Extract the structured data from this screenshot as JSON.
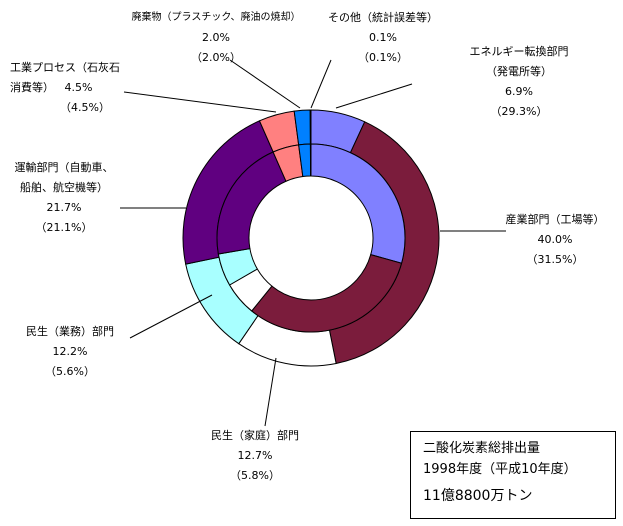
{
  "chart_data": {
    "type": "pie",
    "categories": [
      "エネルギー転換部門（発電所等）",
      "産業部門（工場等）",
      "民生（家庭）部門",
      "民生（業務）部門",
      "運輸部門（自動車、船舶、航空機等）",
      "工業プロセス（石灰石消費等）",
      "廃棄物（プラスチック、廃油の焼却）",
      "その他（統計誤差等）"
    ],
    "series": [
      {
        "ring": "outer",
        "values": [
          6.9,
          40.0,
          12.7,
          12.2,
          21.7,
          4.5,
          2.0,
          0.1
        ]
      },
      {
        "ring": "inner",
        "values": [
          29.3,
          31.5,
          5.8,
          5.6,
          21.1,
          4.5,
          2.0,
          0.1
        ]
      }
    ],
    "colors": [
      "#8080ff",
      "#7b1c3c",
      "#ffffff",
      "#a8ffff",
      "#600080",
      "#ff8080",
      "#0080ff",
      "#c0c0ff"
    ],
    "unit": "%"
  },
  "labels": {
    "energy": {
      "l1": "エネルギー転換部門",
      "l2": "（発電所等）",
      "outer": "6.9%",
      "inner": "（29.3%）"
    },
    "industry": {
      "l1": "産業部門（工場等）",
      "outer": "40.0%",
      "inner": "（31.5%）"
    },
    "household": {
      "l1": "民生（家庭）部門",
      "outer": "12.7%",
      "inner": "（5.8%）"
    },
    "business": {
      "l1": "民生（業務）部門",
      "outer": "12.2%",
      "inner": "（5.6%）"
    },
    "transport": {
      "l1": "運輸部門（自動車、",
      "l2": "船舶、航空機等）",
      "outer": "21.7%",
      "inner": "（21.1%）"
    },
    "process": {
      "l1": "工業プロセス（石灰石",
      "l2": "消費等）",
      "outer": "4.5%",
      "inner": "（4.5%）"
    },
    "waste": {
      "l1": "廃棄物（プラスチック、廃油の焼却）",
      "outer": "2.0%",
      "inner": "（2.0%）"
    },
    "other": {
      "l1": "その他（統計誤差等）",
      "outer": "0.1%",
      "inner": "（0.1%）"
    }
  },
  "summary": {
    "title": "二酸化炭素総排出量",
    "year": "1998年度（平成10年度）",
    "total": "11億8800万トン"
  }
}
